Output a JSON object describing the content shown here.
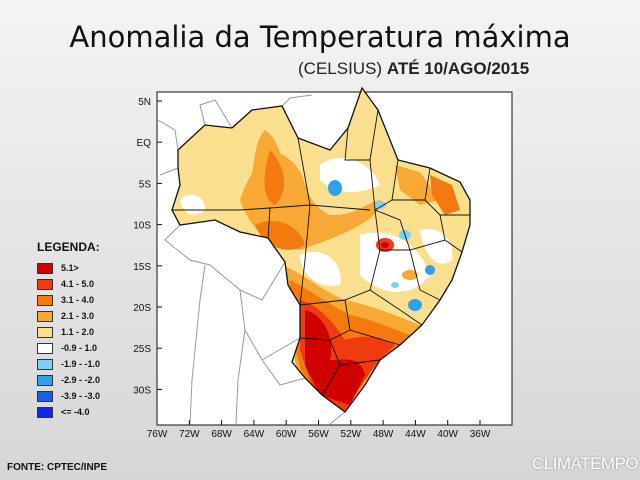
{
  "header": {
    "title": "Anomalia da Temperatura máxima",
    "subtitle_unit": "(CELSIUS)",
    "subtitle_date": "ATÉ 10/AGO/2015"
  },
  "axes": {
    "lat_labels": [
      "5N",
      "EQ",
      "5S",
      "10S",
      "15S",
      "20S",
      "25S",
      "30S"
    ],
    "lon_labels": [
      "76W",
      "72W",
      "68W",
      "64W",
      "60W",
      "56W",
      "52W",
      "48W",
      "44W",
      "40W",
      "36W"
    ]
  },
  "legend": {
    "title": "LEGENDA:",
    "items": [
      {
        "label": "5.1>",
        "color": "#d10000"
      },
      {
        "label": "4.1 - 5.0",
        "color": "#f03a10"
      },
      {
        "label": "3.1 - 4.0",
        "color": "#f47a10"
      },
      {
        "label": "2.1 - 3.0",
        "color": "#f8a834"
      },
      {
        "label": "1.1 - 2.0",
        "color": "#fae08e"
      },
      {
        "label": "-0.9 - 1.0",
        "color": "#ffffff"
      },
      {
        "label": "-1.9 - -1.0",
        "color": "#7fd0f7"
      },
      {
        "label": "-2.9 - -2.0",
        "color": "#2fa0ee"
      },
      {
        "label": "-3.9 - -3.0",
        "color": "#1a5fe0"
      },
      {
        "label": "<= -4.0",
        "color": "#1228e6"
      }
    ]
  },
  "footer": {
    "source": "FONTE: CPTEC/INPE",
    "brand": "CLIMATEMPO"
  }
}
